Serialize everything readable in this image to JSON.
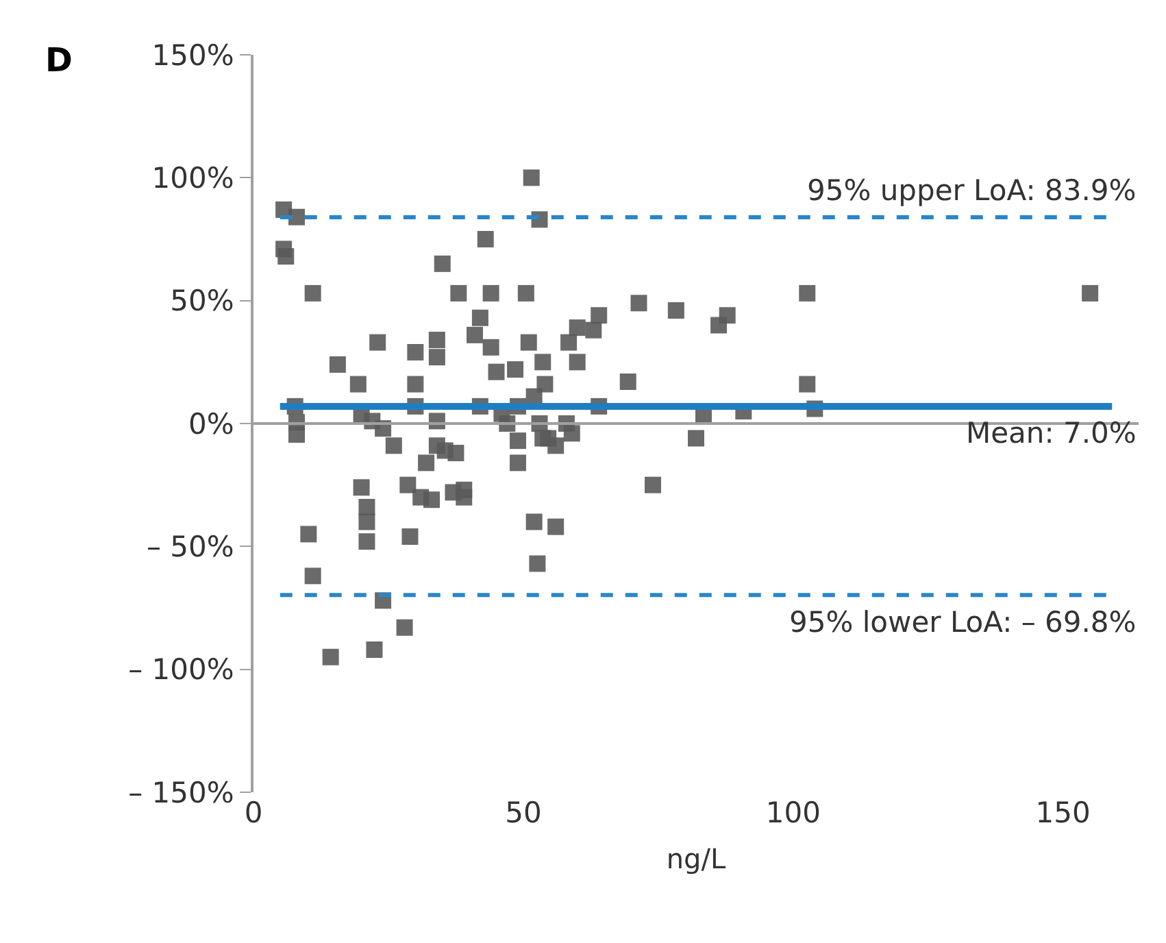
{
  "chart_data": {
    "type": "scatter",
    "xlabel": "ng/L",
    "annotations": [
      "D"
    ],
    "xlim": [
      0,
      164
    ],
    "xticks": [
      0,
      50,
      100,
      150
    ],
    "ylim": [
      -150,
      150
    ],
    "yticks": [
      {
        "value": 150,
        "label": "150%"
      },
      {
        "value": 100,
        "label": "100%"
      },
      {
        "value": 50,
        "label": "50%"
      },
      {
        "value": 0,
        "label": "0%"
      },
      {
        "value": -50,
        "label": "– 50%"
      },
      {
        "value": -100,
        "label": "– 100%"
      },
      {
        "value": -150,
        "label": "– 150%"
      }
    ],
    "marker": "square",
    "series": [
      {
        "color": "#5a5a5a",
        "x": [
          5.6,
          8,
          5.6,
          6,
          11,
          7.7,
          8,
          8,
          10.2,
          11,
          15.6,
          14.3,
          23,
          19.4,
          22,
          20,
          20,
          21,
          21,
          21,
          24,
          26,
          24,
          22.4,
          28,
          28.6,
          29,
          30,
          34,
          34,
          30,
          38,
          35,
          30,
          34,
          34,
          32,
          33,
          35.5,
          31,
          37,
          37.5,
          39,
          39,
          41,
          42,
          43,
          44,
          44,
          45,
          42,
          46,
          48.5,
          49,
          47,
          49,
          49,
          50.5,
          51,
          51.5,
          53,
          53.6,
          54,
          52,
          53,
          52,
          53.6,
          54.6,
          52.6,
          56,
          58,
          59,
          58.4,
          60,
          60,
          63,
          64,
          64,
          69.4,
          71.4,
          78.3,
          87.8,
          86.2,
          102.6,
          155,
          102.6,
          83.4,
          90.8,
          104,
          82,
          74,
          56
        ],
        "values": [
          87,
          84,
          71,
          68,
          53,
          7,
          0.5,
          -4.5,
          -45,
          -62,
          24,
          -95,
          33,
          16,
          1,
          3,
          -26,
          -34,
          -40,
          -48,
          -2,
          -9,
          -72,
          -92,
          -83,
          -25,
          -46,
          16,
          27,
          34,
          29,
          53,
          65,
          7,
          1,
          -9,
          -16,
          -31,
          -11,
          -30,
          -28,
          -12,
          -27,
          -30,
          36,
          43,
          75,
          53,
          31,
          21,
          7,
          4,
          22,
          7,
          0,
          -7,
          -16,
          53,
          33,
          100,
          83,
          25,
          16,
          11,
          0,
          -40,
          -6,
          -6,
          -57,
          -9,
          0,
          -4,
          33,
          39,
          25,
          38,
          44,
          7,
          17,
          49,
          46,
          44,
          40,
          53,
          53,
          16,
          3,
          5,
          6,
          -6,
          -25,
          -42
        ]
      }
    ],
    "ref_lines": [
      {
        "axis": "y",
        "value": 0,
        "color": "#a0a0a0",
        "line_style": "solid"
      },
      {
        "axis": "y",
        "value": 83.9,
        "label": "95% upper LoA: 83.9%",
        "color": "#2a86c8",
        "line_style": "dashed"
      },
      {
        "axis": "y",
        "value": 7.0,
        "label": "Mean: 7.0%",
        "color": "#1f7ec2",
        "line_style": "solid"
      },
      {
        "axis": "y",
        "value": -69.8,
        "label": "95% lower LoA: – 69.8%",
        "color": "#2a86c8",
        "line_style": "dashed"
      }
    ]
  }
}
